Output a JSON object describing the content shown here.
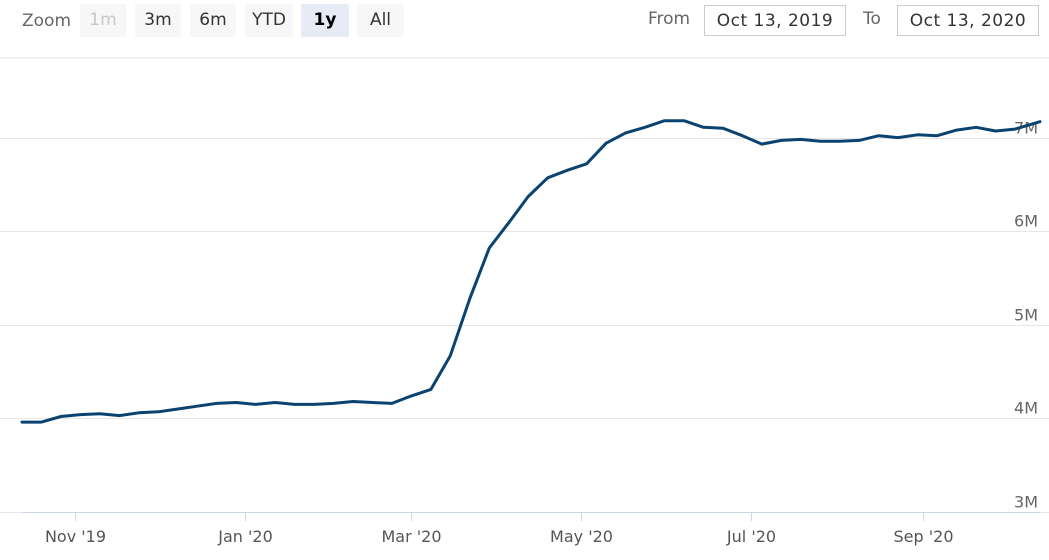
{
  "range_selector": {
    "zoom_label": "Zoom",
    "buttons": [
      {
        "label": "1m",
        "state": "disabled"
      },
      {
        "label": "3m",
        "state": "normal"
      },
      {
        "label": "6m",
        "state": "normal"
      },
      {
        "label": "YTD",
        "state": "normal"
      },
      {
        "label": "1y",
        "state": "selected"
      },
      {
        "label": "All",
        "state": "normal"
      }
    ],
    "from_label": "From",
    "from_value": "Oct 13, 2019",
    "to_label": "To",
    "to_value": "Oct 13, 2020"
  },
  "colors": {
    "line": "#0b4370",
    "grid": "#e6e6e6",
    "selected_button": "#e6ebf5"
  },
  "chart_data": {
    "type": "line",
    "y_ticks": [
      "3M",
      "4M",
      "5M",
      "6M",
      "7M"
    ],
    "ylim": [
      3000000,
      7850000
    ],
    "x_ticks": [
      {
        "label": "Nov '19",
        "date": "2019-11-01"
      },
      {
        "label": "Jan '20",
        "date": "2020-01-01"
      },
      {
        "label": "Mar '20",
        "date": "2020-03-01"
      },
      {
        "label": "May '20",
        "date": "2020-05-01"
      },
      {
        "label": "Jul '20",
        "date": "2020-07-01"
      },
      {
        "label": "Sep '20",
        "date": "2020-09-01"
      }
    ],
    "xlim": [
      "2019-10-13",
      "2020-10-13"
    ],
    "grid": true,
    "series": [
      {
        "points": [
          [
            "2019-10-13",
            3960000
          ],
          [
            "2019-10-20",
            3960000
          ],
          [
            "2019-10-27",
            4020000
          ],
          [
            "2019-11-03",
            4040000
          ],
          [
            "2019-11-10",
            4050000
          ],
          [
            "2019-11-17",
            4030000
          ],
          [
            "2019-11-24",
            4060000
          ],
          [
            "2019-12-01",
            4070000
          ],
          [
            "2019-12-08",
            4100000
          ],
          [
            "2019-12-15",
            4130000
          ],
          [
            "2019-12-22",
            4160000
          ],
          [
            "2019-12-29",
            4170000
          ],
          [
            "2020-01-05",
            4150000
          ],
          [
            "2020-01-12",
            4170000
          ],
          [
            "2020-01-19",
            4150000
          ],
          [
            "2020-01-26",
            4150000
          ],
          [
            "2020-02-02",
            4160000
          ],
          [
            "2020-02-09",
            4180000
          ],
          [
            "2020-02-16",
            4170000
          ],
          [
            "2020-02-23",
            4160000
          ],
          [
            "2020-03-01",
            4240000
          ],
          [
            "2020-03-08",
            4310000
          ],
          [
            "2020-03-15",
            4670000
          ],
          [
            "2020-03-22",
            5280000
          ],
          [
            "2020-03-29",
            5820000
          ],
          [
            "2020-04-05",
            6090000
          ],
          [
            "2020-04-12",
            6370000
          ],
          [
            "2020-04-19",
            6570000
          ],
          [
            "2020-04-26",
            6650000
          ],
          [
            "2020-05-03",
            6720000
          ],
          [
            "2020-05-10",
            6940000
          ],
          [
            "2020-05-17",
            7050000
          ],
          [
            "2020-05-24",
            7110000
          ],
          [
            "2020-05-31",
            7180000
          ],
          [
            "2020-06-07",
            7180000
          ],
          [
            "2020-06-14",
            7110000
          ],
          [
            "2020-06-21",
            7100000
          ],
          [
            "2020-06-28",
            7020000
          ],
          [
            "2020-07-05",
            6930000
          ],
          [
            "2020-07-12",
            6970000
          ],
          [
            "2020-07-19",
            6980000
          ],
          [
            "2020-07-26",
            6960000
          ],
          [
            "2020-08-02",
            6960000
          ],
          [
            "2020-08-09",
            6970000
          ],
          [
            "2020-08-16",
            7020000
          ],
          [
            "2020-08-23",
            7000000
          ],
          [
            "2020-08-30",
            7030000
          ],
          [
            "2020-09-06",
            7020000
          ],
          [
            "2020-09-13",
            7080000
          ],
          [
            "2020-09-20",
            7110000
          ],
          [
            "2020-09-27",
            7070000
          ],
          [
            "2020-10-04",
            7090000
          ],
          [
            "2020-10-13",
            7170000
          ]
        ]
      }
    ]
  }
}
